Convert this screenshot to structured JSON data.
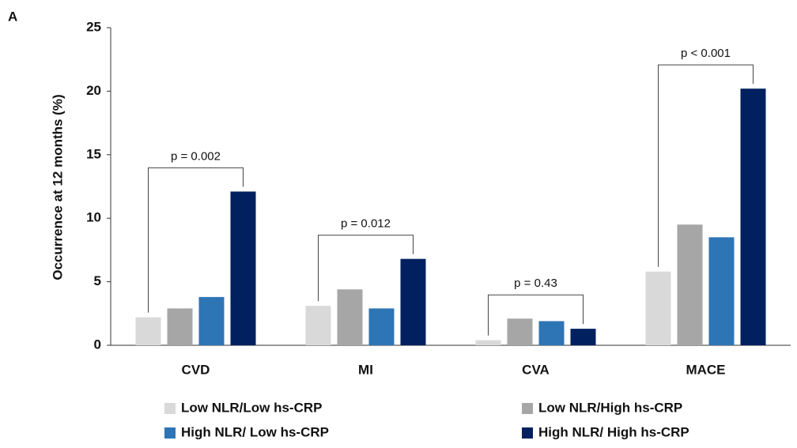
{
  "chart_data": {
    "type": "bar",
    "panel_label": "A",
    "y_label": "Occurrence at 12 months (%)",
    "categories": [
      "CVD",
      "MI",
      "CVA",
      "MACE"
    ],
    "series": [
      {
        "name": "Low NLR/Low hs-CRP",
        "color": "#d9d9d9",
        "values": [
          2.2,
          3.1,
          0.4,
          5.8
        ]
      },
      {
        "name": "Low NLR/High hs-CRP",
        "color": "#a6a6a6",
        "values": [
          2.9,
          4.4,
          2.1,
          9.5
        ]
      },
      {
        "name": "High NLR/ Low hs-CRP",
        "color": "#2e75b6",
        "values": [
          3.8,
          2.9,
          1.9,
          8.5
        ]
      },
      {
        "name": "High NLR/ High hs-CRP",
        "color": "#002060",
        "values": [
          12.1,
          6.8,
          1.3,
          20.2
        ]
      }
    ],
    "annotations": [
      "p = 0.002",
      "p = 0.012",
      "p = 0.43",
      "p < 0.001"
    ],
    "ylim": [
      0,
      25
    ],
    "yticks": [
      0,
      5,
      10,
      15,
      20,
      25
    ],
    "grid": false
  }
}
